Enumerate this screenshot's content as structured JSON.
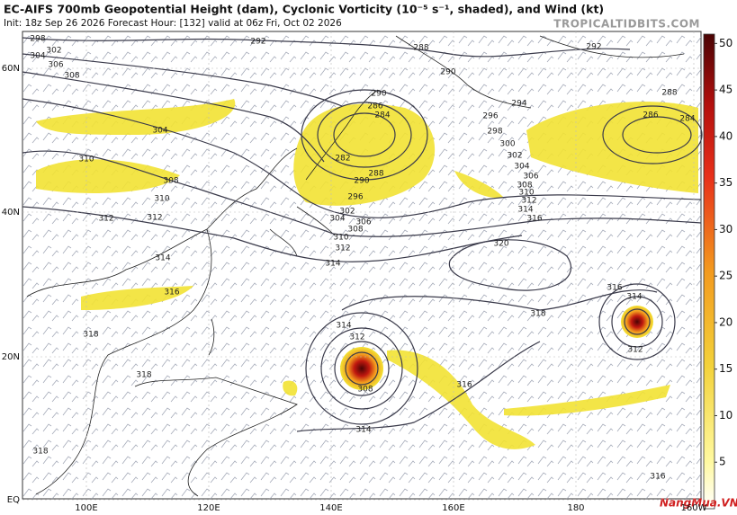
{
  "header": {
    "title": "EC-AIFS 700mb Geopotential Height (dam), Cyclonic Vorticity (10⁻⁵ s⁻¹, shaded), and Wind (kt)",
    "init": "Init: 18z Sep 26 2026   Forecast Hour: [132]   valid at 06z Fri, Oct 02 2026",
    "source": "TROPICALTIDBITS.COM"
  },
  "map": {
    "lon_labels": [
      "100E",
      "120E",
      "140E",
      "160E",
      "180",
      "160W"
    ],
    "lat_labels": [
      "60N",
      "40N",
      "20N",
      "EQ"
    ],
    "contour_labels": [
      "298",
      "302",
      "304",
      "306",
      "308",
      "292",
      "288",
      "290",
      "292",
      "290",
      "286",
      "284",
      "294",
      "296",
      "298",
      "300",
      "302",
      "304",
      "306",
      "308",
      "310",
      "312",
      "314",
      "316",
      "320",
      "288",
      "286",
      "284",
      "304",
      "310",
      "308",
      "310",
      "312",
      "312",
      "314",
      "316",
      "318",
      "318",
      "318",
      "282",
      "290",
      "288",
      "296",
      "302",
      "304",
      "306",
      "308",
      "310",
      "312",
      "314",
      "314",
      "312",
      "308",
      "314",
      "316",
      "318",
      "316",
      "314",
      "312",
      "316"
    ]
  },
  "colorbar": {
    "range": [
      0,
      51
    ],
    "ticks": [
      5,
      10,
      15,
      20,
      25,
      30,
      35,
      40,
      45,
      50
    ]
  },
  "watermark": "NangMua.VN"
}
